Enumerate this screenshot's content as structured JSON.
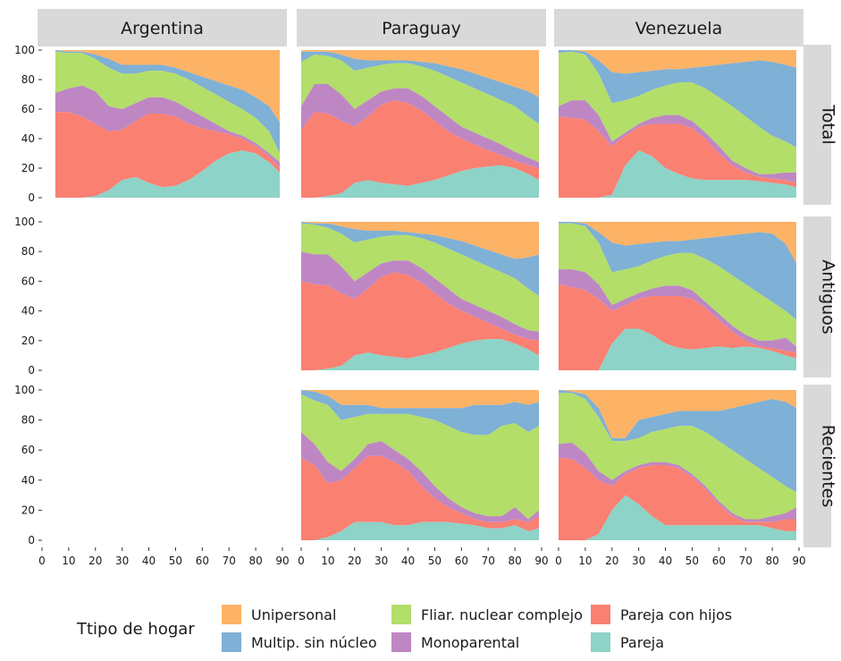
{
  "chart_data": {
    "type": "area",
    "stacked": "fill",
    "columns": [
      "Argentina",
      "Paraguay",
      "Venezuela"
    ],
    "rows": [
      "Total",
      "Antiguos",
      "Recientes"
    ],
    "x_ticks": [
      "0",
      "10",
      "20",
      "30",
      "40",
      "50",
      "60",
      "70",
      "80",
      "90"
    ],
    "y_ticks": [
      "0",
      "20",
      "40",
      "60",
      "80",
      "100"
    ],
    "xlim": [
      0,
      90
    ],
    "ylim": [
      0,
      100
    ],
    "legend": {
      "title": "Ttipo de hogar",
      "position": "bottom",
      "entries": [
        {
          "key": "unipersonal",
          "label": "Unipersonal",
          "color": "#FDB366"
        },
        {
          "key": "multip",
          "label": "Multip. sin núcleo",
          "color": "#7FB0D5"
        },
        {
          "key": "complejo",
          "label": "Fliar. nuclear complejo",
          "color": "#B3DE69"
        },
        {
          "key": "monoparental",
          "label": "Monoparental",
          "color": "#BE87C4"
        },
        {
          "key": "pareja_hijos",
          "label": "Pareja con hijos",
          "color": "#FA8072"
        },
        {
          "key": "pareja",
          "label": "Pareja",
          "color": "#8DD3C7"
        }
      ]
    },
    "stack_order": [
      "pareja",
      "pareja_hijos",
      "monoparental",
      "complejo",
      "multip",
      "unipersonal"
    ],
    "panels": [
      {
        "col": "Argentina",
        "row": "Total",
        "x": [
          5,
          10,
          15,
          20,
          25,
          30,
          35,
          40,
          45,
          50,
          55,
          60,
          65,
          70,
          75,
          80,
          85,
          89
        ],
        "cum": [
          [
            0,
            0,
            0,
            1,
            5,
            12,
            14,
            10,
            7,
            8,
            12,
            18,
            25,
            30,
            32,
            30,
            24,
            17
          ],
          [
            58,
            58,
            55,
            50,
            45,
            46,
            52,
            57,
            57,
            55,
            50,
            47,
            45,
            43,
            40,
            35,
            28,
            20
          ],
          [
            71,
            74,
            76,
            72,
            62,
            60,
            64,
            68,
            68,
            65,
            60,
            55,
            50,
            45,
            42,
            37,
            30,
            24
          ],
          [
            99,
            98,
            98,
            94,
            88,
            84,
            84,
            86,
            86,
            84,
            80,
            75,
            70,
            65,
            60,
            54,
            45,
            30
          ],
          [
            100,
            99,
            99,
            97,
            94,
            90,
            90,
            90,
            90,
            88,
            85,
            82,
            79,
            76,
            73,
            68,
            62,
            51
          ],
          [
            100,
            100,
            100,
            100,
            100,
            100,
            100,
            100,
            100,
            100,
            100,
            100,
            100,
            100,
            100,
            100,
            100,
            100
          ]
        ]
      },
      {
        "col": "Paraguay",
        "row": "Total",
        "x": [
          0,
          5,
          10,
          15,
          20,
          25,
          30,
          35,
          40,
          45,
          50,
          55,
          60,
          65,
          70,
          75,
          80,
          85,
          89
        ],
        "cum": [
          [
            0,
            0,
            1,
            3,
            10,
            12,
            10,
            9,
            8,
            10,
            12,
            15,
            18,
            20,
            21,
            22,
            20,
            16,
            12
          ],
          [
            46,
            58,
            57,
            52,
            48,
            55,
            63,
            66,
            64,
            59,
            52,
            45,
            40,
            36,
            32,
            29,
            25,
            22,
            20
          ],
          [
            62,
            77,
            77,
            70,
            60,
            66,
            72,
            74,
            74,
            69,
            62,
            55,
            48,
            44,
            40,
            36,
            31,
            27,
            24
          ],
          [
            92,
            97,
            96,
            93,
            86,
            88,
            90,
            91,
            91,
            89,
            86,
            82,
            78,
            74,
            70,
            66,
            62,
            55,
            50
          ],
          [
            99,
            99,
            99,
            97,
            94,
            93,
            93,
            93,
            93,
            92,
            91,
            89,
            87,
            84,
            81,
            78,
            75,
            72,
            68
          ],
          [
            100,
            100,
            100,
            100,
            100,
            100,
            100,
            100,
            100,
            100,
            100,
            100,
            100,
            100,
            100,
            100,
            100,
            100,
            100
          ]
        ]
      },
      {
        "col": "Venezuela",
        "row": "Total",
        "x": [
          0,
          5,
          10,
          15,
          20,
          25,
          30,
          35,
          40,
          45,
          50,
          55,
          60,
          65,
          70,
          75,
          80,
          85,
          89
        ],
        "cum": [
          [
            0,
            0,
            0,
            0,
            2,
            22,
            32,
            28,
            20,
            16,
            13,
            12,
            12,
            12,
            12,
            11,
            10,
            9,
            7
          ],
          [
            55,
            54,
            53,
            45,
            35,
            42,
            48,
            50,
            50,
            50,
            47,
            40,
            30,
            22,
            17,
            14,
            13,
            12,
            10
          ],
          [
            62,
            66,
            66,
            56,
            38,
            44,
            50,
            54,
            56,
            56,
            52,
            44,
            35,
            25,
            20,
            16,
            16,
            17,
            17
          ],
          [
            98,
            99,
            97,
            84,
            64,
            66,
            69,
            73,
            76,
            78,
            78,
            74,
            68,
            62,
            55,
            48,
            42,
            38,
            34
          ],
          [
            100,
            100,
            99,
            93,
            85,
            84,
            85,
            86,
            87,
            87,
            88,
            89,
            90,
            91,
            92,
            93,
            92,
            90,
            88
          ],
          [
            100,
            100,
            100,
            100,
            100,
            100,
            100,
            100,
            100,
            100,
            100,
            100,
            100,
            100,
            100,
            100,
            100,
            100,
            100
          ]
        ]
      },
      {
        "col": "Paraguay",
        "row": "Antiguos",
        "x": [
          0,
          5,
          10,
          15,
          20,
          25,
          30,
          35,
          40,
          45,
          50,
          55,
          60,
          65,
          70,
          75,
          80,
          85,
          89
        ],
        "cum": [
          [
            0,
            0,
            1,
            3,
            10,
            12,
            10,
            9,
            8,
            10,
            12,
            15,
            18,
            20,
            21,
            21,
            18,
            14,
            10
          ],
          [
            60,
            58,
            57,
            52,
            48,
            55,
            63,
            66,
            64,
            59,
            52,
            45,
            40,
            36,
            32,
            28,
            24,
            21,
            20
          ],
          [
            80,
            78,
            78,
            70,
            60,
            66,
            72,
            74,
            74,
            69,
            62,
            55,
            48,
            44,
            40,
            36,
            31,
            27,
            26
          ],
          [
            99,
            98,
            96,
            92,
            86,
            88,
            90,
            91,
            91,
            89,
            86,
            82,
            78,
            74,
            70,
            66,
            62,
            55,
            50
          ],
          [
            100,
            99,
            99,
            97,
            95,
            94,
            94,
            94,
            93,
            92,
            91,
            89,
            87,
            84,
            81,
            78,
            75,
            76,
            78
          ],
          [
            100,
            100,
            100,
            100,
            100,
            100,
            100,
            100,
            100,
            100,
            100,
            100,
            100,
            100,
            100,
            100,
            100,
            100,
            100
          ]
        ]
      },
      {
        "col": "Venezuela",
        "row": "Antiguos",
        "x": [
          0,
          5,
          10,
          15,
          20,
          25,
          30,
          35,
          40,
          45,
          50,
          55,
          60,
          65,
          70,
          75,
          80,
          85,
          89
        ],
        "cum": [
          [
            0,
            0,
            0,
            0,
            18,
            28,
            28,
            24,
            18,
            15,
            14,
            15,
            16,
            15,
            16,
            15,
            13,
            10,
            8
          ],
          [
            58,
            56,
            54,
            48,
            40,
            44,
            48,
            50,
            50,
            50,
            48,
            42,
            34,
            26,
            20,
            16,
            15,
            13,
            12
          ],
          [
            68,
            68,
            66,
            58,
            44,
            48,
            52,
            55,
            57,
            57,
            54,
            46,
            38,
            30,
            24,
            20,
            20,
            22,
            16
          ],
          [
            99,
            99,
            97,
            86,
            66,
            68,
            70,
            74,
            77,
            79,
            79,
            75,
            70,
            64,
            58,
            52,
            46,
            40,
            34
          ],
          [
            100,
            100,
            99,
            93,
            86,
            84,
            85,
            86,
            87,
            87,
            88,
            89,
            90,
            91,
            92,
            93,
            92,
            85,
            72
          ],
          [
            100,
            100,
            100,
            100,
            100,
            100,
            100,
            100,
            100,
            100,
            100,
            100,
            100,
            100,
            100,
            100,
            100,
            100,
            100
          ]
        ]
      },
      {
        "col": "Paraguay",
        "row": "Recientes",
        "x": [
          0,
          5,
          10,
          15,
          20,
          25,
          30,
          35,
          40,
          45,
          50,
          55,
          60,
          65,
          70,
          75,
          80,
          85,
          89
        ],
        "cum": [
          [
            0,
            0,
            2,
            6,
            12,
            12,
            12,
            10,
            10,
            12,
            12,
            12,
            11,
            10,
            8,
            8,
            10,
            6,
            8
          ],
          [
            55,
            50,
            38,
            40,
            48,
            56,
            56,
            52,
            46,
            36,
            28,
            22,
            18,
            14,
            12,
            12,
            14,
            12,
            16
          ],
          [
            72,
            64,
            52,
            46,
            54,
            64,
            66,
            60,
            54,
            46,
            36,
            28,
            22,
            18,
            16,
            16,
            22,
            14,
            20
          ],
          [
            97,
            93,
            90,
            80,
            82,
            84,
            84,
            84,
            84,
            82,
            80,
            76,
            72,
            70,
            70,
            76,
            78,
            72,
            76
          ],
          [
            100,
            99,
            96,
            90,
            90,
            90,
            88,
            88,
            88,
            88,
            88,
            88,
            88,
            90,
            90,
            90,
            92,
            90,
            92
          ],
          [
            100,
            100,
            100,
            100,
            100,
            100,
            100,
            100,
            100,
            100,
            100,
            100,
            100,
            100,
            100,
            100,
            100,
            100,
            100
          ]
        ]
      },
      {
        "col": "Venezuela",
        "row": "Recientes",
        "x": [
          0,
          5,
          10,
          15,
          20,
          25,
          30,
          35,
          40,
          45,
          50,
          55,
          60,
          65,
          70,
          75,
          80,
          85,
          89
        ],
        "cum": [
          [
            0,
            0,
            0,
            4,
            20,
            30,
            24,
            16,
            10,
            10,
            10,
            10,
            10,
            10,
            10,
            10,
            8,
            6,
            6
          ],
          [
            55,
            54,
            48,
            40,
            36,
            44,
            48,
            50,
            50,
            48,
            42,
            34,
            24,
            16,
            12,
            12,
            12,
            14,
            14
          ],
          [
            64,
            65,
            58,
            46,
            40,
            46,
            50,
            52,
            52,
            50,
            44,
            36,
            26,
            18,
            14,
            14,
            16,
            18,
            22
          ],
          [
            98,
            98,
            94,
            82,
            66,
            66,
            68,
            72,
            74,
            76,
            76,
            72,
            66,
            60,
            54,
            48,
            42,
            36,
            32
          ],
          [
            100,
            99,
            97,
            88,
            68,
            68,
            80,
            82,
            84,
            86,
            86,
            86,
            86,
            88,
            90,
            92,
            94,
            92,
            88
          ],
          [
            100,
            100,
            100,
            100,
            100,
            100,
            100,
            100,
            100,
            100,
            100,
            100,
            100,
            100,
            100,
            100,
            100,
            100,
            100
          ]
        ]
      }
    ]
  }
}
